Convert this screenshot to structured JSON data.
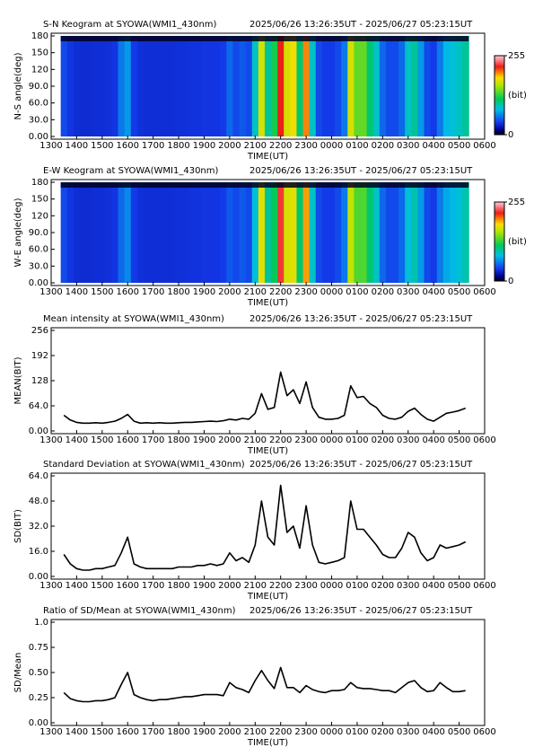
{
  "chart_data": [
    {
      "type": "heatmap",
      "title": "S-N Keogram at SYOWA(WMI1_430nm)",
      "subtitle": "2025/06/26 13:26:35UT - 2025/06/27 05:23:15UT",
      "ylabel": "N-S angle(deg)",
      "xlabel": "TIME(UT)",
      "x": [
        13.5,
        13.75,
        14,
        14.25,
        14.5,
        14.75,
        15,
        15.25,
        15.5,
        15.75,
        16,
        16.25,
        16.5,
        16.75,
        17,
        17.25,
        17.5,
        17.75,
        18,
        18.25,
        18.5,
        18.75,
        19,
        19.25,
        19.5,
        19.75,
        20,
        20.25,
        20.5,
        20.75,
        21,
        21.25,
        21.5,
        21.75,
        22,
        22.25,
        22.5,
        22.75,
        23,
        23.25,
        23.5,
        23.75,
        24,
        24.25,
        24.5,
        24.75,
        25,
        25.25,
        25.5,
        25.75,
        26,
        26.25,
        26.5,
        26.75,
        27,
        27.25,
        27.5,
        27.75,
        28,
        28.25,
        28.5,
        28.75,
        29,
        29.25
      ],
      "values": [
        45,
        38,
        35,
        34,
        34,
        35,
        35,
        36,
        38,
        60,
        70,
        40,
        36,
        35,
        35,
        35,
        35,
        35,
        36,
        36,
        37,
        37,
        38,
        38,
        38,
        40,
        55,
        45,
        50,
        45,
        90,
        170,
        100,
        120,
        220,
        170,
        180,
        110,
        200,
        90,
        45,
        40,
        40,
        45,
        60,
        170,
        140,
        140,
        110,
        90,
        55,
        45,
        45,
        55,
        90,
        100,
        70,
        45,
        40,
        60,
        80,
        85,
        90,
        100
      ],
      "xlim": [
        13,
        30
      ],
      "xticks": [
        {
          "value": 13,
          "label": "1300"
        },
        {
          "value": 14,
          "label": "1400"
        },
        {
          "value": 15,
          "label": "1500"
        },
        {
          "value": 16,
          "label": "1600"
        },
        {
          "value": 17,
          "label": "1700"
        },
        {
          "value": 18,
          "label": "1800"
        },
        {
          "value": 19,
          "label": "1900"
        },
        {
          "value": 20,
          "label": "2000"
        },
        {
          "value": 21,
          "label": "2100"
        },
        {
          "value": 22,
          "label": "2200"
        },
        {
          "value": 23,
          "label": "2300"
        },
        {
          "value": 24,
          "label": "0000"
        },
        {
          "value": 25,
          "label": "0100"
        },
        {
          "value": 26,
          "label": "0200"
        },
        {
          "value": 27,
          "label": "0300"
        },
        {
          "value": 28,
          "label": "0400"
        },
        {
          "value": 29,
          "label": "0500"
        },
        {
          "value": 30,
          "label": "0600"
        }
      ],
      "ylim": [
        0,
        180
      ],
      "yticks": [
        {
          "value": 0,
          "label": "0.00"
        },
        {
          "value": 30,
          "label": "30.0"
        },
        {
          "value": 60,
          "label": "60.0"
        },
        {
          "value": 90,
          "label": "90.0"
        },
        120,
        150,
        180
      ],
      "clim": [
        0,
        255
      ],
      "colorbar_ticks": [
        0,
        255
      ],
      "colorbar_label": "(bit)"
    },
    {
      "type": "heatmap",
      "title": "E-W Keogram at SYOWA(WMI1_430nm)",
      "subtitle": "2025/06/26 13:26:35UT - 2025/06/27 05:23:15UT",
      "ylabel": "W-E angle(deg)",
      "xlabel": "TIME(UT)",
      "x": [
        13.5,
        13.75,
        14,
        14.25,
        14.5,
        14.75,
        15,
        15.25,
        15.5,
        15.75,
        16,
        16.25,
        16.5,
        16.75,
        17,
        17.25,
        17.5,
        17.75,
        18,
        18.25,
        18.5,
        18.75,
        19,
        19.25,
        19.5,
        19.75,
        20,
        20.25,
        20.5,
        20.75,
        21,
        21.25,
        21.5,
        21.75,
        22,
        22.25,
        22.5,
        22.75,
        23,
        23.25,
        23.5,
        23.75,
        24,
        24.25,
        24.5,
        24.75,
        25,
        25.25,
        25.5,
        25.75,
        26,
        26.25,
        26.5,
        26.75,
        27,
        27.25,
        27.5,
        27.75,
        28,
        28.25,
        28.5,
        28.75,
        29,
        29.25
      ],
      "values": [
        45,
        38,
        35,
        34,
        34,
        35,
        35,
        36,
        38,
        55,
        65,
        40,
        36,
        35,
        35,
        35,
        35,
        35,
        36,
        36,
        37,
        37,
        38,
        38,
        38,
        40,
        50,
        45,
        50,
        45,
        85,
        175,
        100,
        115,
        225,
        170,
        175,
        110,
        195,
        90,
        45,
        40,
        40,
        45,
        60,
        165,
        135,
        135,
        110,
        90,
        55,
        45,
        45,
        55,
        85,
        95,
        70,
        45,
        40,
        60,
        75,
        80,
        85,
        95
      ],
      "xlim": [
        13,
        30
      ],
      "xticks": [
        {
          "value": 13,
          "label": "1300"
        },
        {
          "value": 14,
          "label": "1400"
        },
        {
          "value": 15,
          "label": "1500"
        },
        {
          "value": 16,
          "label": "1600"
        },
        {
          "value": 17,
          "label": "1700"
        },
        {
          "value": 18,
          "label": "1800"
        },
        {
          "value": 19,
          "label": "1900"
        },
        {
          "value": 20,
          "label": "2000"
        },
        {
          "value": 21,
          "label": "2100"
        },
        {
          "value": 22,
          "label": "2200"
        },
        {
          "value": 23,
          "label": "2300"
        },
        {
          "value": 24,
          "label": "0000"
        },
        {
          "value": 25,
          "label": "0100"
        },
        {
          "value": 26,
          "label": "0200"
        },
        {
          "value": 27,
          "label": "0300"
        },
        {
          "value": 28,
          "label": "0400"
        },
        {
          "value": 29,
          "label": "0500"
        },
        {
          "value": 30,
          "label": "0600"
        }
      ],
      "ylim": [
        0,
        180
      ],
      "yticks": [
        {
          "value": 0,
          "label": "0.00"
        },
        {
          "value": 30,
          "label": "30.0"
        },
        {
          "value": 60,
          "label": "60.0"
        },
        {
          "value": 90,
          "label": "90.0"
        },
        120,
        150,
        180
      ],
      "clim": [
        0,
        255
      ],
      "colorbar_ticks": [
        0,
        255
      ],
      "colorbar_label": "(bit)"
    },
    {
      "type": "line",
      "title": "Mean intensity at SYOWA(WMI1_430nm)",
      "subtitle": "2025/06/26 13:26:35UT - 2025/06/27 05:23:15UT",
      "ylabel": "MEAN(BIT)",
      "xlabel": "TIME(UT)",
      "color": "#000000",
      "x": [
        13.5,
        13.75,
        14,
        14.25,
        14.5,
        14.75,
        15,
        15.25,
        15.5,
        15.75,
        16,
        16.25,
        16.5,
        16.75,
        17,
        17.25,
        17.5,
        17.75,
        18,
        18.25,
        18.5,
        18.75,
        19,
        19.25,
        19.5,
        19.75,
        20,
        20.25,
        20.5,
        20.75,
        21,
        21.25,
        21.5,
        21.75,
        22,
        22.25,
        22.5,
        22.75,
        23,
        23.25,
        23.5,
        23.75,
        24,
        24.25,
        24.5,
        24.75,
        25,
        25.25,
        25.5,
        25.75,
        26,
        26.25,
        26.5,
        26.75,
        27,
        27.25,
        27.5,
        27.75,
        28,
        28.25,
        28.5,
        28.75,
        29,
        29.25
      ],
      "values": [
        40,
        28,
        22,
        20,
        20,
        21,
        20,
        22,
        25,
        32,
        42,
        25,
        20,
        21,
        20,
        21,
        20,
        20,
        21,
        22,
        22,
        23,
        24,
        25,
        24,
        26,
        30,
        28,
        32,
        30,
        45,
        95,
        55,
        60,
        150,
        90,
        105,
        70,
        125,
        60,
        35,
        30,
        30,
        32,
        40,
        115,
        85,
        88,
        70,
        60,
        40,
        32,
        30,
        35,
        50,
        58,
        42,
        30,
        25,
        35,
        45,
        48,
        52,
        58
      ],
      "xlim": [
        13,
        30
      ],
      "xticks": [
        {
          "value": 13,
          "label": "1300"
        },
        {
          "value": 14,
          "label": "1400"
        },
        {
          "value": 15,
          "label": "1500"
        },
        {
          "value": 16,
          "label": "1600"
        },
        {
          "value": 17,
          "label": "1700"
        },
        {
          "value": 18,
          "label": "1800"
        },
        {
          "value": 19,
          "label": "1900"
        },
        {
          "value": 20,
          "label": "2000"
        },
        {
          "value": 21,
          "label": "2100"
        },
        {
          "value": 22,
          "label": "2200"
        },
        {
          "value": 23,
          "label": "2300"
        },
        {
          "value": 24,
          "label": "0000"
        },
        {
          "value": 25,
          "label": "0100"
        },
        {
          "value": 26,
          "label": "0200"
        },
        {
          "value": 27,
          "label": "0300"
        },
        {
          "value": 28,
          "label": "0400"
        },
        {
          "value": 29,
          "label": "0500"
        },
        {
          "value": 30,
          "label": "0600"
        }
      ],
      "ylim": [
        0,
        256
      ],
      "yticks": [
        {
          "value": 0,
          "label": "0.00"
        },
        {
          "value": 64,
          "label": "64.0"
        },
        128,
        192,
        256
      ]
    },
    {
      "type": "line",
      "title": "Standard Deviation at SYOWA(WMI1_430nm)",
      "subtitle": "2025/06/26 13:26:35UT - 2025/06/27 05:23:15UT",
      "ylabel": "SD(BIT)",
      "xlabel": "TIME(UT)",
      "color": "#000000",
      "x": [
        13.5,
        13.75,
        14,
        14.25,
        14.5,
        14.75,
        15,
        15.25,
        15.5,
        15.75,
        16,
        16.25,
        16.5,
        16.75,
        17,
        17.25,
        17.5,
        17.75,
        18,
        18.25,
        18.5,
        18.75,
        19,
        19.25,
        19.5,
        19.75,
        20,
        20.25,
        20.5,
        20.75,
        21,
        21.25,
        21.5,
        21.75,
        22,
        22.25,
        22.5,
        22.75,
        23,
        23.25,
        23.5,
        23.75,
        24,
        24.25,
        24.5,
        24.75,
        25,
        25.25,
        25.5,
        25.75,
        26,
        26.25,
        26.5,
        26.75,
        27,
        27.25,
        27.5,
        27.75,
        28,
        28.25,
        28.5,
        28.75,
        29,
        29.25
      ],
      "values": [
        14,
        8,
        5,
        4,
        4,
        5,
        5,
        6,
        7,
        15,
        25,
        8,
        6,
        5,
        5,
        5,
        5,
        5,
        6,
        6,
        6,
        7,
        7,
        8,
        7,
        8,
        15,
        10,
        12,
        9,
        20,
        48,
        25,
        20,
        58,
        28,
        32,
        18,
        45,
        20,
        9,
        8,
        9,
        10,
        12,
        48,
        30,
        30,
        25,
        20,
        14,
        12,
        12,
        18,
        28,
        25,
        15,
        10,
        12,
        20,
        18,
        19,
        20,
        22
      ],
      "xlim": [
        13,
        30
      ],
      "xticks": [
        {
          "value": 13,
          "label": "1300"
        },
        {
          "value": 14,
          "label": "1400"
        },
        {
          "value": 15,
          "label": "1500"
        },
        {
          "value": 16,
          "label": "1600"
        },
        {
          "value": 17,
          "label": "1700"
        },
        {
          "value": 18,
          "label": "1800"
        },
        {
          "value": 19,
          "label": "1900"
        },
        {
          "value": 20,
          "label": "2000"
        },
        {
          "value": 21,
          "label": "2100"
        },
        {
          "value": 22,
          "label": "2200"
        },
        {
          "value": 23,
          "label": "2300"
        },
        {
          "value": 24,
          "label": "0000"
        },
        {
          "value": 25,
          "label": "0100"
        },
        {
          "value": 26,
          "label": "0200"
        },
        {
          "value": 27,
          "label": "0300"
        },
        {
          "value": 28,
          "label": "0400"
        },
        {
          "value": 29,
          "label": "0500"
        },
        {
          "value": 30,
          "label": "0600"
        }
      ],
      "ylim": [
        0,
        64
      ],
      "yticks": [
        {
          "value": 0,
          "label": "0.00"
        },
        {
          "value": 16,
          "label": "16.0"
        },
        {
          "value": 32,
          "label": "32.0"
        },
        {
          "value": 48,
          "label": "48.0"
        },
        {
          "value": 64,
          "label": "64.0"
        }
      ]
    },
    {
      "type": "line",
      "title": "Ratio of SD/Mean at SYOWA(WMI1_430nm)",
      "subtitle": "2025/06/26 13:26:35UT - 2025/06/27 05:23:15UT",
      "ylabel": "SD/Mean",
      "xlabel": "TIME(UT)",
      "color": "#000000",
      "x": [
        13.5,
        13.75,
        14,
        14.25,
        14.5,
        14.75,
        15,
        15.25,
        15.5,
        15.75,
        16,
        16.25,
        16.5,
        16.75,
        17,
        17.25,
        17.5,
        17.75,
        18,
        18.25,
        18.5,
        18.75,
        19,
        19.25,
        19.5,
        19.75,
        20,
        20.25,
        20.5,
        20.75,
        21,
        21.25,
        21.5,
        21.75,
        22,
        22.25,
        22.5,
        22.75,
        23,
        23.25,
        23.5,
        23.75,
        24,
        24.25,
        24.5,
        24.75,
        25,
        25.25,
        25.5,
        25.75,
        26,
        26.25,
        26.5,
        26.75,
        27,
        27.25,
        27.5,
        27.75,
        28,
        28.25,
        28.5,
        28.75,
        29,
        29.25
      ],
      "values": [
        0.3,
        0.24,
        0.22,
        0.21,
        0.21,
        0.22,
        0.22,
        0.23,
        0.25,
        0.38,
        0.5,
        0.28,
        0.25,
        0.23,
        0.22,
        0.23,
        0.23,
        0.24,
        0.25,
        0.26,
        0.26,
        0.27,
        0.28,
        0.28,
        0.28,
        0.27,
        0.4,
        0.35,
        0.33,
        0.3,
        0.42,
        0.52,
        0.42,
        0.34,
        0.55,
        0.35,
        0.35,
        0.3,
        0.37,
        0.33,
        0.31,
        0.3,
        0.32,
        0.32,
        0.33,
        0.4,
        0.35,
        0.34,
        0.34,
        0.33,
        0.32,
        0.32,
        0.3,
        0.35,
        0.4,
        0.42,
        0.35,
        0.31,
        0.32,
        0.4,
        0.35,
        0.31,
        0.31,
        0.32
      ],
      "xlim": [
        13,
        30
      ],
      "xticks": [
        {
          "value": 13,
          "label": "1300"
        },
        {
          "value": 14,
          "label": "1400"
        },
        {
          "value": 15,
          "label": "1500"
        },
        {
          "value": 16,
          "label": "1600"
        },
        {
          "value": 17,
          "label": "1700"
        },
        {
          "value": 18,
          "label": "1800"
        },
        {
          "value": 19,
          "label": "1900"
        },
        {
          "value": 20,
          "label": "2000"
        },
        {
          "value": 21,
          "label": "2100"
        },
        {
          "value": 22,
          "label": "2200"
        },
        {
          "value": 23,
          "label": "2300"
        },
        {
          "value": 24,
          "label": "0000"
        },
        {
          "value": 25,
          "label": "0100"
        },
        {
          "value": 26,
          "label": "0200"
        },
        {
          "value": 27,
          "label": "0300"
        },
        {
          "value": 28,
          "label": "0400"
        },
        {
          "value": 29,
          "label": "0500"
        },
        {
          "value": 30,
          "label": "0600"
        }
      ],
      "ylim": [
        0,
        1
      ],
      "yticks": [
        {
          "value": 0,
          "label": "0.00"
        },
        0.25,
        {
          "value": 0.5,
          "label": "0.50"
        },
        0.75,
        {
          "value": 1,
          "label": "1.0"
        }
      ]
    }
  ]
}
